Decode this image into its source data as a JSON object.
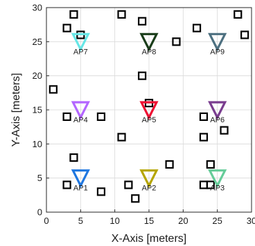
{
  "chart_data": {
    "type": "scatter",
    "title": "",
    "xlabel": "X-Axis [meters]",
    "ylabel": "Y-Axis [meters]",
    "xlim": [
      0,
      30
    ],
    "ylim": [
      0,
      30
    ],
    "x_ticks": [
      0,
      5,
      10,
      15,
      20,
      25,
      30
    ],
    "y_ticks": [
      0,
      5,
      10,
      15,
      20,
      25,
      30
    ],
    "grid": true,
    "access_points": [
      {
        "label": "AP1",
        "x": 5,
        "y": 5,
        "color": "#1f77e0"
      },
      {
        "label": "AP2",
        "x": 15,
        "y": 5,
        "color": "#b5a500"
      },
      {
        "label": "AP3",
        "x": 25,
        "y": 5,
        "color": "#66cc99"
      },
      {
        "label": "AP4",
        "x": 5,
        "y": 15,
        "color": "#b366ff"
      },
      {
        "label": "AP5",
        "x": 15,
        "y": 15,
        "color": "#ee1133"
      },
      {
        "label": "AP6",
        "x": 25,
        "y": 15,
        "color": "#7a3d8f"
      },
      {
        "label": "AP7",
        "x": 5,
        "y": 25,
        "color": "#66e6e6"
      },
      {
        "label": "AP8",
        "x": 15,
        "y": 25,
        "color": "#1a3d1a"
      },
      {
        "label": "AP9",
        "x": 25,
        "y": 25,
        "color": "#4d7080"
      }
    ],
    "points": [
      {
        "x": 4,
        "y": 29
      },
      {
        "x": 11,
        "y": 29
      },
      {
        "x": 28,
        "y": 29
      },
      {
        "x": 14,
        "y": 28
      },
      {
        "x": 3,
        "y": 27
      },
      {
        "x": 22,
        "y": 27
      },
      {
        "x": 5,
        "y": 26
      },
      {
        "x": 29,
        "y": 26
      },
      {
        "x": 19,
        "y": 25
      },
      {
        "x": 14,
        "y": 20
      },
      {
        "x": 1,
        "y": 18
      },
      {
        "x": 15,
        "y": 16
      },
      {
        "x": 3,
        "y": 14
      },
      {
        "x": 8,
        "y": 14
      },
      {
        "x": 23,
        "y": 14
      },
      {
        "x": 26,
        "y": 12
      },
      {
        "x": 11,
        "y": 11
      },
      {
        "x": 23,
        "y": 11
      },
      {
        "x": 4,
        "y": 8
      },
      {
        "x": 18,
        "y": 7
      },
      {
        "x": 24,
        "y": 7
      },
      {
        "x": 3,
        "y": 4
      },
      {
        "x": 12,
        "y": 4
      },
      {
        "x": 23,
        "y": 4
      },
      {
        "x": 24,
        "y": 4
      },
      {
        "x": 8,
        "y": 3
      },
      {
        "x": 13,
        "y": 2
      }
    ],
    "point_color": "#000000"
  }
}
